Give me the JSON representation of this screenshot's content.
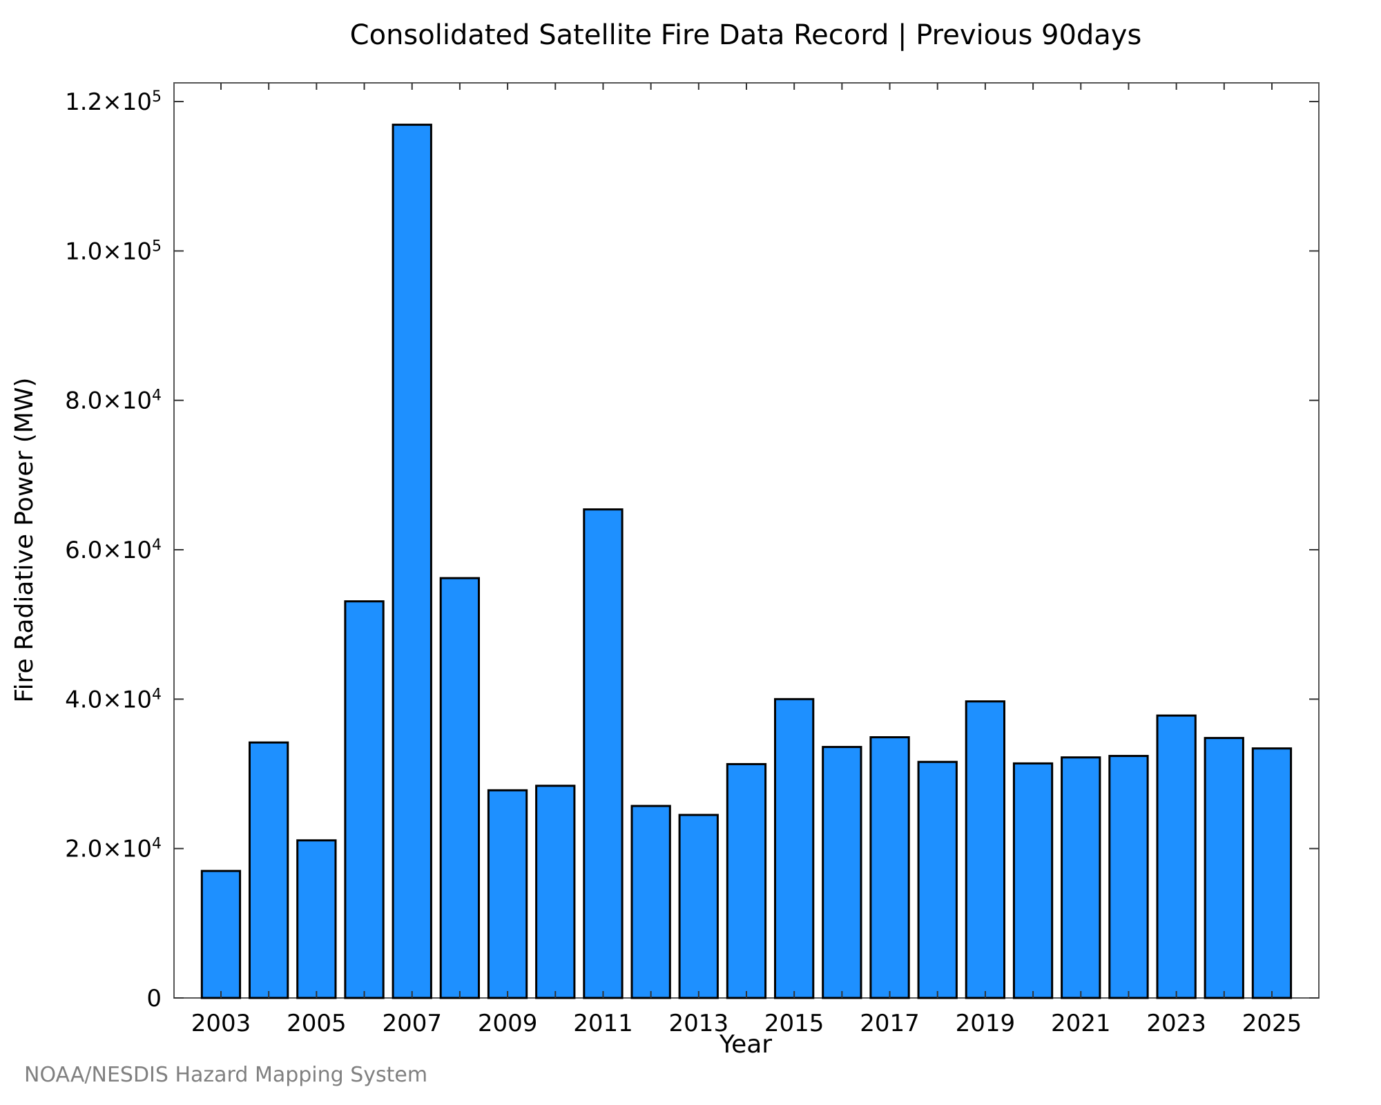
{
  "chart_data": {
    "type": "bar",
    "title": "Consolidated Satellite Fire Data Record | Previous 90days",
    "xlabel": "Year",
    "ylabel": "Fire Radiative Power (MW)",
    "categories": [
      "2003",
      "2004",
      "2005",
      "2006",
      "2007",
      "2008",
      "2009",
      "2010",
      "2011",
      "2012",
      "2013",
      "2014",
      "2015",
      "2016",
      "2017",
      "2018",
      "2019",
      "2020",
      "2021",
      "2022",
      "2023",
      "2024",
      "2025"
    ],
    "values": [
      17000,
      34200,
      21100,
      53100,
      116900,
      56200,
      27800,
      28400,
      65400,
      25700,
      24500,
      31300,
      40000,
      33600,
      34900,
      31600,
      39700,
      31400,
      32200,
      32400,
      37800,
      34800,
      33400
    ],
    "x_tick_labels": [
      "2003",
      "2005",
      "2007",
      "2009",
      "2011",
      "2013",
      "2015",
      "2017",
      "2019",
      "2021",
      "2023",
      "2025"
    ],
    "y_ticks": [
      {
        "value": 0,
        "mantissa": "0",
        "exponent": ""
      },
      {
        "value": 20000,
        "mantissa": "2.0×10",
        "exponent": "4"
      },
      {
        "value": 40000,
        "mantissa": "4.0×10",
        "exponent": "4"
      },
      {
        "value": 60000,
        "mantissa": "6.0×10",
        "exponent": "4"
      },
      {
        "value": 80000,
        "mantissa": "8.0×10",
        "exponent": "4"
      },
      {
        "value": 100000,
        "mantissa": "1.0×10",
        "exponent": "5"
      },
      {
        "value": 120000,
        "mantissa": "1.2×10",
        "exponent": "5"
      }
    ],
    "ylim": [
      0,
      122500
    ],
    "grid": false,
    "legend": "none",
    "bar_color": "#1E90FF",
    "bar_edge_color": "#000000"
  },
  "footer": {
    "credit": "NOAA/NESDIS Hazard Mapping System"
  }
}
